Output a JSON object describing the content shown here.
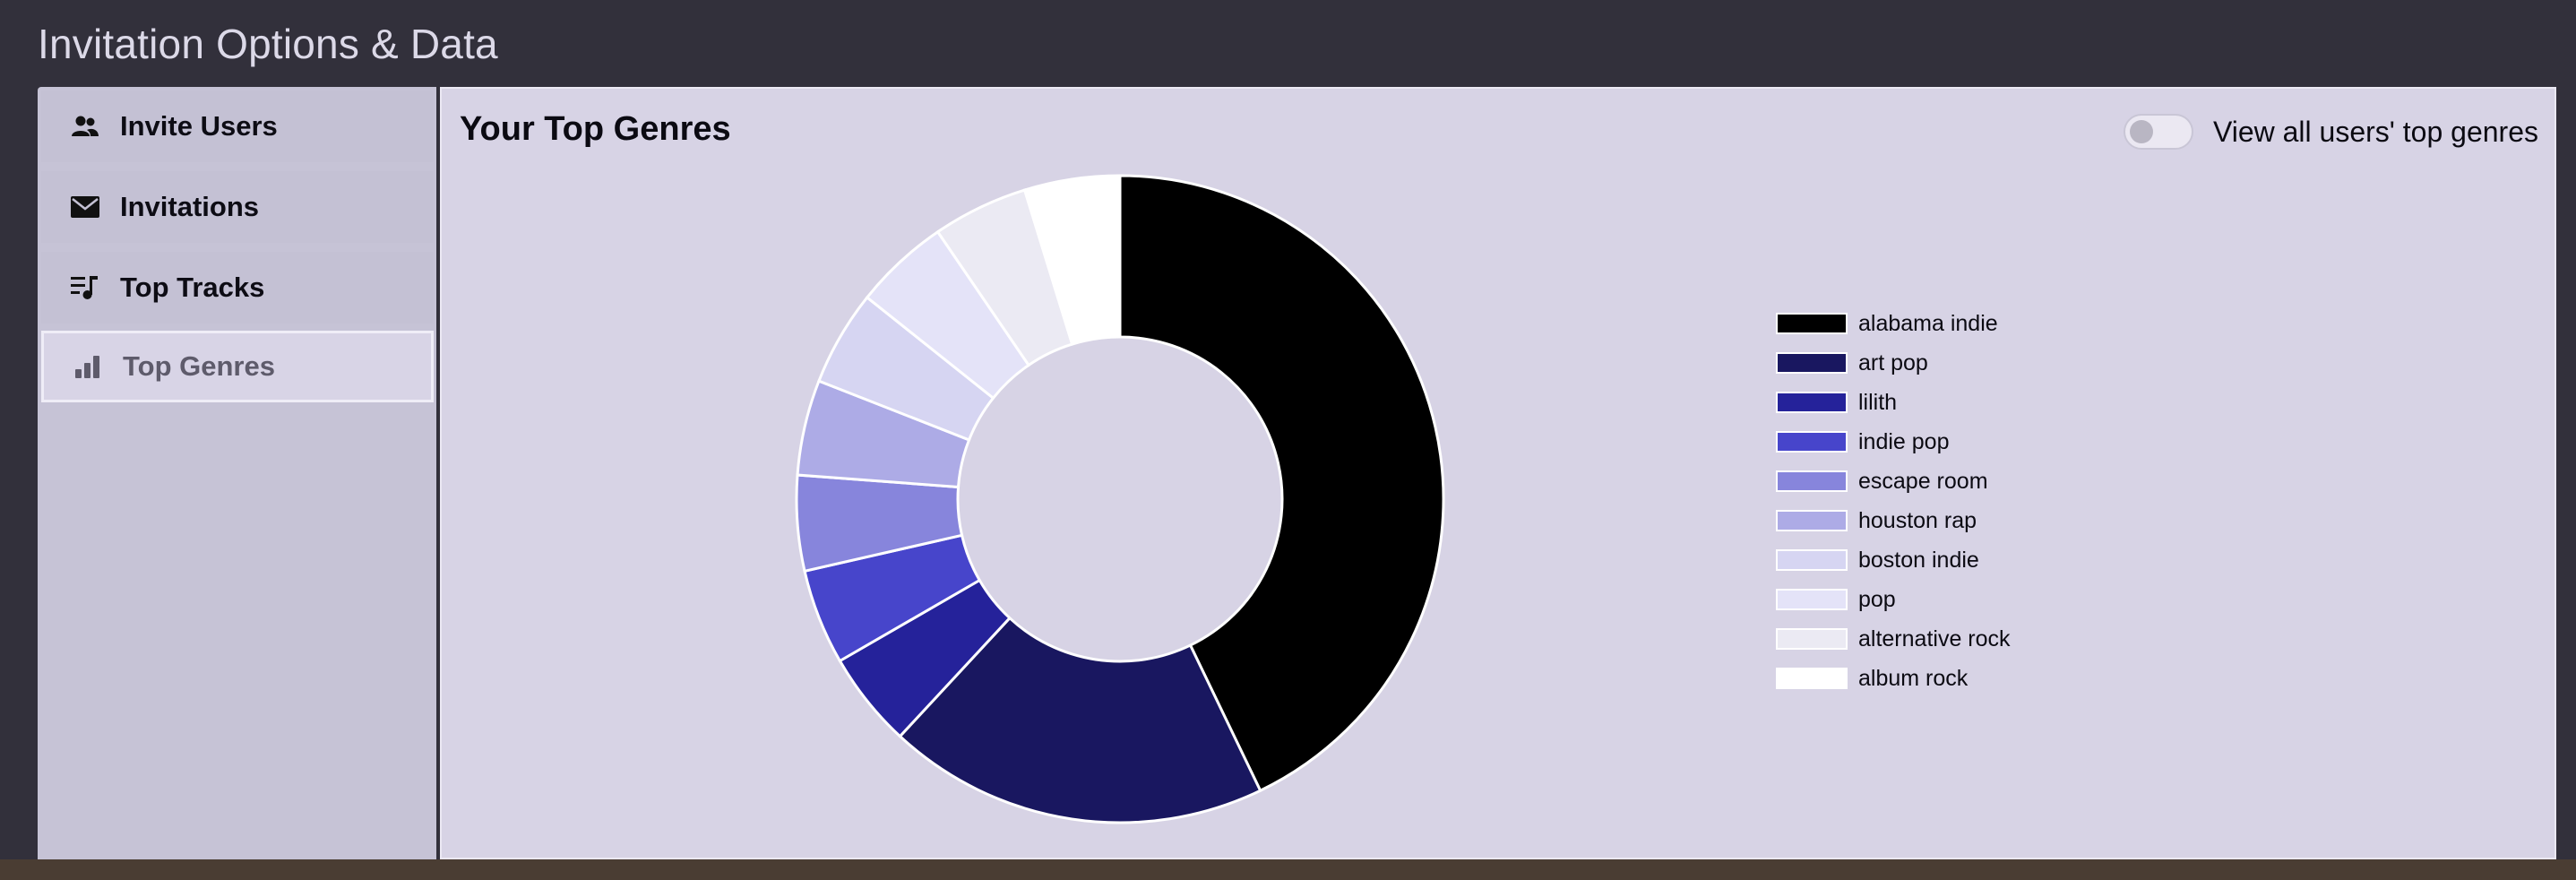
{
  "page": {
    "title": "Invitation Options & Data"
  },
  "sidebar": {
    "items": [
      {
        "label": "Invite Users",
        "icon": "users-icon",
        "active": false
      },
      {
        "label": "Invitations",
        "icon": "envelope-icon",
        "active": false
      },
      {
        "label": "Top Tracks",
        "icon": "playlist-music-icon",
        "active": false
      },
      {
        "label": "Top Genres",
        "icon": "bar-chart-icon",
        "active": true
      }
    ]
  },
  "main": {
    "title": "Your Top Genres",
    "toggle": {
      "label": "View all users' top genres",
      "checked": false
    }
  },
  "chart_data": {
    "type": "pie",
    "style": "donut",
    "categories": [
      "alabama indie",
      "art pop",
      "lilith",
      "indie pop",
      "escape room",
      "houston rap",
      "boston indie",
      "pop",
      "alternative rock",
      "album rock"
    ],
    "values": [
      9,
      4,
      1,
      1,
      1,
      1,
      1,
      1,
      1,
      1
    ],
    "colors": [
      "#000000",
      "#191760",
      "#25229a",
      "#4745cb",
      "#8785dc",
      "#adabe6",
      "#d6d5f2",
      "#e4e3f8",
      "#ebeaf3",
      "#ffffff"
    ],
    "legend": "right",
    "title": ""
  }
}
